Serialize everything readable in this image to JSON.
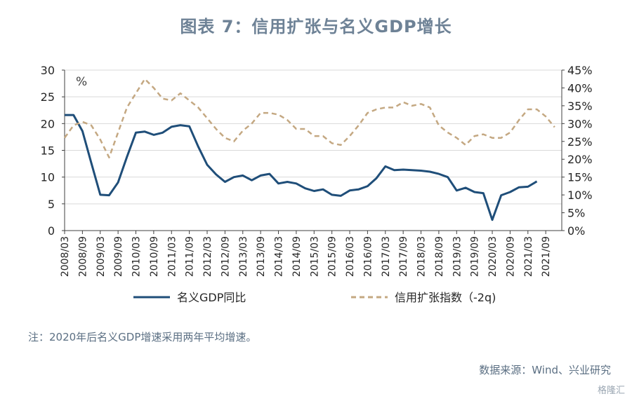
{
  "title": "图表 7：信用扩张与名义GDP增长",
  "note": "注：2020年后名义GDP增速采用两年平均增速。",
  "source": "数据来源：Wind、兴业研究",
  "watermark": "格隆汇",
  "chart_data": {
    "type": "line",
    "unit_label": "%",
    "left_axis": {
      "min": 0,
      "max": 30,
      "ticks": [
        "0",
        "5",
        "10",
        "15",
        "20",
        "25",
        "30"
      ]
    },
    "right_axis": {
      "min": 0,
      "max": 45,
      "ticks": [
        "0%",
        "5%",
        "10%",
        "15%",
        "20%",
        "25%",
        "30%",
        "35%",
        "40%",
        "45%"
      ]
    },
    "x_tick_labels": [
      "2008/03",
      "2008/09",
      "2009/03",
      "2009/09",
      "2010/03",
      "2010/09",
      "2011/03",
      "2011/09",
      "2012/03",
      "2012/09",
      "2013/03",
      "2013/09",
      "2014/03",
      "2014/09",
      "2015/03",
      "2015/09",
      "2016/03",
      "2016/09",
      "2017/03",
      "2017/09",
      "2018/03",
      "2018/09",
      "2019/03",
      "2019/09",
      "2020/03",
      "2020/09",
      "2021/03",
      "2021/09"
    ],
    "series": [
      {
        "name": "名义GDP同比",
        "axis": "left",
        "color": "#1f4e79",
        "style": "solid",
        "x": [
          "2008/03",
          "2008/06",
          "2008/09",
          "2008/12",
          "2009/03",
          "2009/06",
          "2009/09",
          "2009/12",
          "2010/03",
          "2010/06",
          "2010/09",
          "2010/12",
          "2011/03",
          "2011/06",
          "2011/09",
          "2011/12",
          "2012/03",
          "2012/06",
          "2012/09",
          "2012/12",
          "2013/03",
          "2013/06",
          "2013/09",
          "2013/12",
          "2014/03",
          "2014/06",
          "2014/09",
          "2014/12",
          "2015/03",
          "2015/06",
          "2015/09",
          "2015/12",
          "2016/03",
          "2016/06",
          "2016/09",
          "2016/12",
          "2017/03",
          "2017/06",
          "2017/09",
          "2017/12",
          "2018/03",
          "2018/06",
          "2018/09",
          "2018/12",
          "2019/03",
          "2019/06",
          "2019/09",
          "2019/12",
          "2020/03",
          "2020/06",
          "2020/09",
          "2020/12",
          "2021/03",
          "2021/06"
        ],
        "values": [
          21.6,
          21.6,
          18.6,
          12.6,
          6.7,
          6.6,
          9.0,
          13.8,
          18.3,
          18.5,
          17.9,
          18.3,
          19.4,
          19.7,
          19.5,
          15.7,
          12.3,
          10.5,
          9.1,
          10.0,
          10.3,
          9.4,
          10.3,
          10.6,
          8.8,
          9.1,
          8.8,
          7.9,
          7.4,
          7.7,
          6.7,
          6.5,
          7.5,
          7.7,
          8.3,
          9.8,
          12.0,
          11.3,
          11.4,
          11.3,
          11.2,
          11.0,
          10.6,
          10.0,
          7.5,
          8.0,
          7.2,
          7.0,
          2.0,
          6.6,
          7.2,
          8.1,
          8.2,
          9.2
        ]
      },
      {
        "name": "信用扩张指数（-2q)",
        "axis": "right",
        "color": "#c4a882",
        "style": "dashed",
        "x": [
          "2008/03",
          "2008/06",
          "2008/09",
          "2008/12",
          "2009/03",
          "2009/06",
          "2009/09",
          "2009/12",
          "2010/03",
          "2010/06",
          "2010/09",
          "2010/12",
          "2011/03",
          "2011/06",
          "2011/09",
          "2011/12",
          "2012/03",
          "2012/06",
          "2012/09",
          "2012/12",
          "2013/03",
          "2013/06",
          "2013/09",
          "2013/12",
          "2014/03",
          "2014/06",
          "2014/09",
          "2014/12",
          "2015/03",
          "2015/06",
          "2015/09",
          "2015/12",
          "2016/03",
          "2016/06",
          "2016/09",
          "2016/12",
          "2017/03",
          "2017/06",
          "2017/09",
          "2017/12",
          "2018/03",
          "2018/06",
          "2018/09",
          "2018/12",
          "2019/03",
          "2019/06",
          "2019/09",
          "2019/12",
          "2020/03",
          "2020/06",
          "2020/09",
          "2020/12",
          "2021/03",
          "2021/06",
          "2021/09",
          "2021/12"
        ],
        "values": [
          26.0,
          29.5,
          30.5,
          29.5,
          25.5,
          20.5,
          27.5,
          34.5,
          38.5,
          42.5,
          40.0,
          37.0,
          36.5,
          38.5,
          36.5,
          34.5,
          31.5,
          28.5,
          26.0,
          25.0,
          28.0,
          30.0,
          33.0,
          33.0,
          32.5,
          31.0,
          28.5,
          28.5,
          26.5,
          26.5,
          24.5,
          24.0,
          26.5,
          29.5,
          33.0,
          34.0,
          34.5,
          34.5,
          36.0,
          35.0,
          35.5,
          34.5,
          29.5,
          27.5,
          26.0,
          24.0,
          26.5,
          27.0,
          26.0,
          26.0,
          27.5,
          31.0,
          34.0,
          34.0,
          32.0,
          29.0
        ]
      }
    ],
    "legend_position": "bottom",
    "grid": "horizontal"
  }
}
